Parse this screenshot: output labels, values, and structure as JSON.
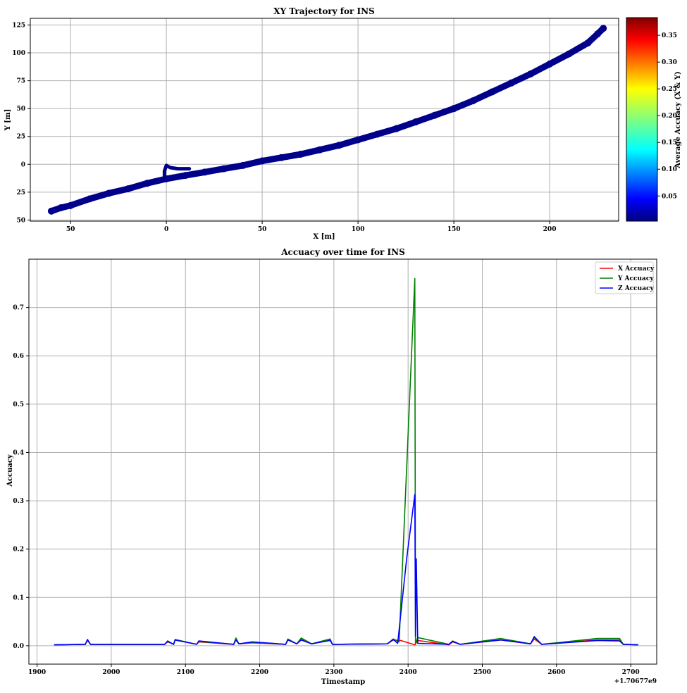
{
  "chart_data": [
    {
      "type": "scatter",
      "title": "XY Trajectory for INS",
      "xlabel": "X [m]",
      "ylabel": "Y [m]",
      "xlim": [
        -71,
        236
      ],
      "ylim": [
        -51,
        131
      ],
      "xticks": [
        -50,
        0,
        50,
        100,
        150,
        200
      ],
      "xtick_labels": [
        "50",
        "0",
        "50",
        "100",
        "150",
        "200"
      ],
      "yticks": [
        125,
        100,
        75,
        50,
        25,
        0,
        -25,
        -50
      ],
      "ytick_labels": [
        "125",
        "100",
        "75",
        "50",
        "25",
        "0",
        "25",
        "50"
      ],
      "grid": true,
      "point_color": "#00008b",
      "trajectory": {
        "x": [
          -60,
          -55,
          -50,
          -40,
          -30,
          -20,
          -10,
          0,
          10,
          20,
          30,
          40,
          50,
          60,
          70,
          80,
          90,
          100,
          110,
          120,
          130,
          140,
          150,
          160,
          170,
          180,
          190,
          200,
          210,
          220,
          225,
          228
        ],
        "y": [
          -42,
          -39,
          -37,
          -31,
          -26,
          -22,
          -17,
          -13,
          -10,
          -7,
          -4,
          -1,
          3,
          6,
          9,
          13,
          17,
          22,
          27,
          32,
          38,
          44,
          50,
          57,
          65,
          73,
          81,
          90,
          99,
          109,
          117,
          122
        ]
      },
      "spur": {
        "x": [
          -1,
          -1,
          0,
          2,
          6,
          12
        ],
        "y": [
          -11,
          -6,
          -1,
          -3,
          -4,
          -4
        ]
      },
      "colorbar": {
        "label": "Average Accuacy (X & Y)",
        "range": [
          0.003,
          0.383
        ],
        "ticks": [
          0.05,
          0.1,
          0.15,
          0.2,
          0.25,
          0.3,
          0.35
        ],
        "tick_labels": [
          "0.05",
          "0.10",
          "0.15",
          "0.20",
          "0.25",
          "0.30",
          "0.35"
        ],
        "colormap": "jet"
      }
    },
    {
      "type": "line",
      "title": "Accuacy over time for INS",
      "xlabel": "Timestamp",
      "ylabel": "Accuacy",
      "offset_label": "+1.70677e9",
      "xlim": [
        1889,
        2735
      ],
      "ylim": [
        -0.038,
        0.8
      ],
      "xticks": [
        1900,
        2000,
        2100,
        2200,
        2300,
        2400,
        2500,
        2600,
        2700
      ],
      "xtick_labels": [
        "1900",
        "2000",
        "2100",
        "2200",
        "2300",
        "2400",
        "2500",
        "2600",
        "2700"
      ],
      "yticks": [
        0.0,
        0.1,
        0.2,
        0.3,
        0.4,
        0.5,
        0.6,
        0.7
      ],
      "ytick_labels": [
        "0.0",
        "0.1",
        "0.2",
        "0.3",
        "0.4",
        "0.5",
        "0.6",
        "0.7"
      ],
      "grid": true,
      "legend_position": "top-right",
      "series": [
        {
          "name": "X Accuacy",
          "color": "#ff0000",
          "x": [
            1923,
            1965,
            1968,
            1972,
            2000,
            2072,
            2076,
            2084,
            2086,
            2115,
            2118,
            2165,
            2168,
            2172,
            2190,
            2235,
            2238,
            2250,
            2256,
            2270,
            2295,
            2298,
            2372,
            2380,
            2390,
            2409,
            2413,
            2455,
            2460,
            2470,
            2525,
            2565,
            2570,
            2580,
            2655,
            2685,
            2690,
            2710
          ],
          "y": [
            0.002,
            0.003,
            0.011,
            0.003,
            0.003,
            0.003,
            0.008,
            0.003,
            0.012,
            0.003,
            0.008,
            0.003,
            0.014,
            0.004,
            0.006,
            0.003,
            0.012,
            0.004,
            0.013,
            0.004,
            0.012,
            0.003,
            0.004,
            0.012,
            0.011,
            0.002,
            0.011,
            0.002,
            0.008,
            0.003,
            0.012,
            0.004,
            0.014,
            0.003,
            0.012,
            0.012,
            0.003,
            0.002
          ]
        },
        {
          "name": "Y Accuacy",
          "color": "#008000",
          "x": [
            1923,
            1965,
            1968,
            1972,
            2000,
            2072,
            2076,
            2084,
            2086,
            2115,
            2118,
            2165,
            2168,
            2172,
            2190,
            2235,
            2238,
            2250,
            2256,
            2270,
            2295,
            2298,
            2372,
            2380,
            2388,
            2409,
            2410,
            2413,
            2455,
            2460,
            2470,
            2525,
            2565,
            2570,
            2580,
            2655,
            2685,
            2690,
            2710
          ],
          "y": [
            0.002,
            0.003,
            0.012,
            0.003,
            0.003,
            0.003,
            0.009,
            0.003,
            0.013,
            0.003,
            0.009,
            0.003,
            0.016,
            0.004,
            0.007,
            0.003,
            0.014,
            0.004,
            0.016,
            0.004,
            0.014,
            0.003,
            0.004,
            0.014,
            0.008,
            0.76,
            0.003,
            0.017,
            0.003,
            0.01,
            0.003,
            0.015,
            0.004,
            0.017,
            0.003,
            0.015,
            0.015,
            0.003,
            0.002
          ]
        },
        {
          "name": "Z Accuacy",
          "color": "#0000ff",
          "x": [
            1923,
            1965,
            1968,
            1972,
            2000,
            2072,
            2076,
            2084,
            2086,
            2115,
            2118,
            2165,
            2168,
            2172,
            2190,
            2235,
            2238,
            2250,
            2256,
            2270,
            2295,
            2298,
            2372,
            2380,
            2386,
            2398,
            2409,
            2410,
            2411,
            2413,
            2455,
            2460,
            2470,
            2525,
            2565,
            2570,
            2580,
            2655,
            2685,
            2690,
            2710
          ],
          "y": [
            0.002,
            0.003,
            0.013,
            0.003,
            0.003,
            0.003,
            0.01,
            0.003,
            0.012,
            0.003,
            0.01,
            0.003,
            0.012,
            0.004,
            0.008,
            0.003,
            0.012,
            0.004,
            0.012,
            0.004,
            0.011,
            0.003,
            0.004,
            0.013,
            0.005,
            0.18,
            0.313,
            0.02,
            0.18,
            0.005,
            0.003,
            0.009,
            0.003,
            0.012,
            0.004,
            0.019,
            0.003,
            0.011,
            0.01,
            0.003,
            0.002
          ]
        }
      ]
    }
  ]
}
